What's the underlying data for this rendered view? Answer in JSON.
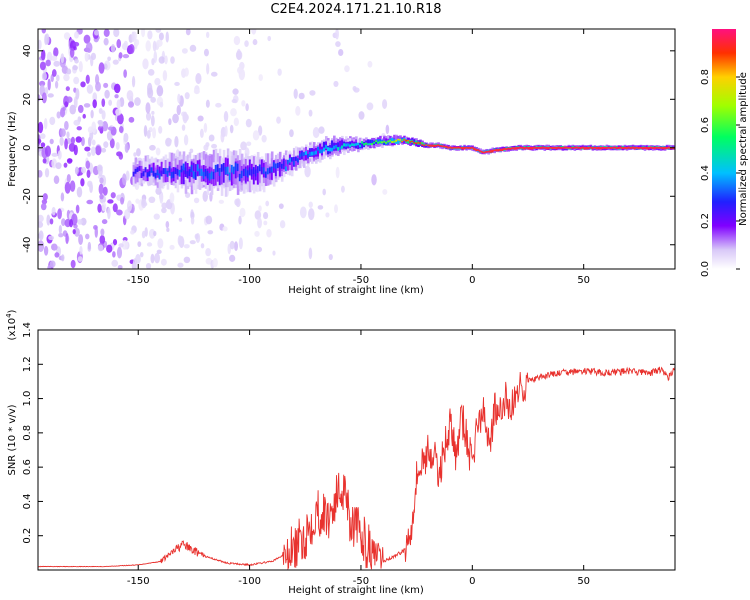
{
  "figure_title": "C2E4.2024.171.21.10.R18",
  "colors": {
    "snr_line": "#e8322e",
    "axis": "#000000",
    "background": "#ffffff"
  },
  "chart_data": [
    {
      "type": "heatmap",
      "title": "C2E4.2024.171.21.10.R18",
      "xlabel": "Height of straight line (km)",
      "ylabel": "Frequency (Hz)",
      "xlim": [
        -195,
        91
      ],
      "ylim": [
        -50,
        49
      ],
      "xticks": [
        -150,
        -100,
        -50,
        0,
        50
      ],
      "xtick_labels": [
        "-150",
        "-100",
        "-50",
        "0",
        "50"
      ],
      "yticks": [
        -40,
        -20,
        0,
        20,
        40
      ],
      "ytick_labels": [
        "-40",
        "-20",
        "0",
        "20",
        "40"
      ],
      "ridge": {
        "description": "Dominant spectral ridge frequency vs height",
        "x": [
          -150,
          -130,
          -110,
          -95,
          -85,
          -75,
          -65,
          -55,
          -45,
          -35,
          -30,
          -25,
          -20,
          -15,
          -10,
          -5,
          0,
          5,
          10,
          20,
          50,
          91
        ],
        "y": [
          -10,
          -10,
          -10,
          -10,
          -8,
          -3,
          0,
          1,
          2,
          3,
          3,
          2,
          1,
          1,
          0,
          0,
          0,
          -2,
          -1,
          0,
          0,
          0
        ],
        "width_hz": [
          5,
          7,
          8,
          7,
          5,
          4,
          4,
          3,
          2,
          2,
          1.5,
          1.5,
          1,
          1,
          1,
          1,
          1,
          1,
          1,
          1,
          1,
          1
        ],
        "peak_amplitude": [
          0.25,
          0.3,
          0.3,
          0.28,
          0.3,
          0.35,
          0.4,
          0.4,
          0.5,
          0.65,
          0.8,
          0.85,
          0.9,
          0.9,
          0.9,
          0.9,
          0.9,
          0.85,
          0.9,
          0.95,
          0.95,
          0.95
        ]
      },
      "colorbar": {
        "label": "Normalized spectral amplitude",
        "range": [
          0,
          1
        ],
        "ticks": [
          0.0,
          0.2,
          0.4,
          0.6,
          0.8
        ],
        "tick_labels": [
          "0.0",
          "0.2",
          "0.4",
          "0.6",
          "0.8"
        ],
        "colormap": [
          "#ffffff",
          "#d8c8f8",
          "#8000ff",
          "#2020ff",
          "#00c0ff",
          "#00ff60",
          "#a0ff00",
          "#ffd000",
          "#ff3000",
          "#ff1080"
        ]
      }
    },
    {
      "type": "line",
      "xlabel": "Height of straight line (km)",
      "ylabel": "SNR (10 * v/v)",
      "scale_label": "(x10",
      "scale_exponent": "4",
      "scale_close": ")",
      "xlim": [
        -195,
        91
      ],
      "ylim": [
        0,
        1.4
      ],
      "xticks": [
        -150,
        -100,
        -50,
        0,
        50
      ],
      "xtick_labels": [
        "-150",
        "-100",
        "-50",
        "0",
        "50"
      ],
      "yticks": [
        0.2,
        0.4,
        0.6,
        0.8,
        1.0,
        1.2,
        1.4
      ],
      "ytick_labels": [
        "0.2",
        "0.4",
        "0.6",
        "0.8",
        "1.0",
        "1.2",
        "1.4"
      ],
      "series": [
        {
          "name": "SNR",
          "x": [
            -195,
            -180,
            -165,
            -150,
            -140,
            -133,
            -130,
            -126,
            -120,
            -110,
            -100,
            -90,
            -80,
            -75,
            -70,
            -65,
            -60,
            -57,
            -55,
            -50,
            -45,
            -40,
            -35,
            -30,
            -27,
            -25,
            -23,
            -20,
            -17,
            -15,
            -12,
            -10,
            -7,
            -5,
            -3,
            0,
            2,
            5,
            8,
            10,
            12,
            15,
            18,
            20,
            25,
            30,
            35,
            40,
            50,
            60,
            70,
            80,
            85,
            88,
            91
          ],
          "y": [
            0.02,
            0.02,
            0.02,
            0.03,
            0.05,
            0.12,
            0.15,
            0.12,
            0.08,
            0.04,
            0.03,
            0.05,
            0.12,
            0.2,
            0.35,
            0.3,
            0.45,
            0.5,
            0.3,
            0.2,
            0.1,
            0.05,
            0.08,
            0.12,
            0.3,
            0.55,
            0.6,
            0.7,
            0.65,
            0.55,
            0.75,
            0.85,
            0.65,
            0.9,
            0.8,
            0.6,
            0.85,
            0.9,
            0.75,
            0.95,
            0.88,
            1.0,
            0.95,
            1.05,
            1.1,
            1.12,
            1.14,
            1.15,
            1.16,
            1.15,
            1.16,
            1.15,
            1.17,
            1.12,
            1.18
          ]
        }
      ]
    }
  ]
}
